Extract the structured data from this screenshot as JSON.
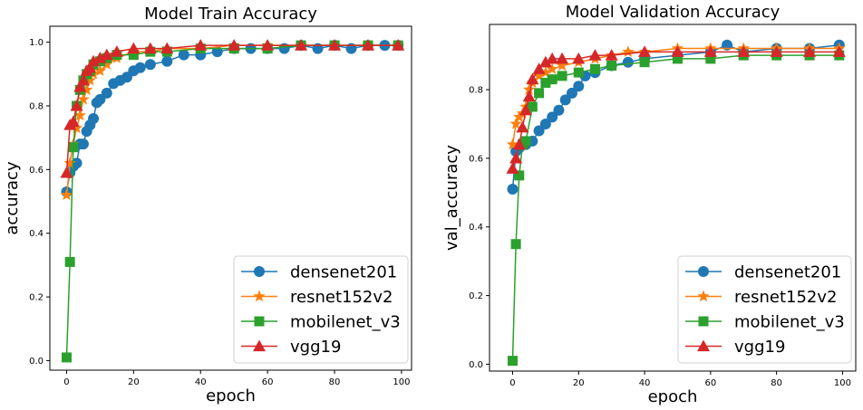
{
  "chart_data": [
    {
      "type": "line",
      "title": "Model Train Accuracy",
      "xlabel": "epoch",
      "ylabel": "accuracy",
      "xlim": [
        -5,
        103
      ],
      "ylim": [
        -0.03,
        1.05
      ],
      "xticks": [
        0,
        20,
        40,
        60,
        80,
        100
      ],
      "yticks": [
        0.0,
        0.2,
        0.4,
        0.6,
        0.8,
        1.0
      ],
      "legend_position": "lower-right",
      "grid": false,
      "series": [
        {
          "name": "densenet201",
          "color": "#1f77b4",
          "marker": "circle",
          "x": [
            0,
            1,
            2,
            3,
            4,
            5,
            6,
            7,
            8,
            9,
            10,
            12,
            14,
            16,
            18,
            20,
            22,
            25,
            30,
            35,
            40,
            45,
            50,
            55,
            60,
            65,
            70,
            75,
            80,
            85,
            90,
            95,
            99
          ],
          "y": [
            0.53,
            0.59,
            0.61,
            0.62,
            0.68,
            0.68,
            0.72,
            0.74,
            0.76,
            0.81,
            0.82,
            0.84,
            0.87,
            0.88,
            0.89,
            0.91,
            0.92,
            0.93,
            0.94,
            0.96,
            0.96,
            0.97,
            0.98,
            0.98,
            0.98,
            0.98,
            0.99,
            0.98,
            0.99,
            0.98,
            0.99,
            0.99,
            0.99
          ]
        },
        {
          "name": "resnet152v2",
          "color": "#ff7f0e",
          "marker": "star",
          "x": [
            0,
            1,
            2,
            3,
            4,
            5,
            6,
            7,
            8,
            10,
            12,
            15,
            20,
            25,
            30,
            40,
            50,
            60,
            70,
            80,
            90,
            99
          ],
          "y": [
            0.52,
            0.62,
            0.68,
            0.73,
            0.77,
            0.82,
            0.85,
            0.88,
            0.9,
            0.91,
            0.93,
            0.95,
            0.97,
            0.97,
            0.98,
            0.98,
            0.99,
            0.99,
            0.99,
            0.99,
            0.99,
            0.99
          ]
        },
        {
          "name": "mobilenet_v3",
          "color": "#2ca02c",
          "marker": "square",
          "x": [
            0,
            1,
            2,
            3,
            4,
            5,
            6,
            7,
            8,
            10,
            12,
            15,
            20,
            25,
            30,
            40,
            50,
            60,
            70,
            80,
            90,
            99
          ],
          "y": [
            0.01,
            0.31,
            0.67,
            0.8,
            0.85,
            0.88,
            0.9,
            0.91,
            0.93,
            0.94,
            0.95,
            0.96,
            0.96,
            0.97,
            0.97,
            0.98,
            0.98,
            0.98,
            0.99,
            0.99,
            0.99,
            0.99
          ]
        },
        {
          "name": "vgg19",
          "color": "#d62728",
          "marker": "triangle",
          "x": [
            0,
            1,
            2,
            3,
            4,
            5,
            6,
            7,
            8,
            10,
            12,
            15,
            20,
            25,
            30,
            40,
            50,
            60,
            70,
            80,
            90,
            99
          ],
          "y": [
            0.59,
            0.74,
            0.75,
            0.8,
            0.86,
            0.88,
            0.91,
            0.92,
            0.94,
            0.95,
            0.96,
            0.97,
            0.98,
            0.98,
            0.98,
            0.99,
            0.99,
            0.99,
            0.99,
            0.99,
            0.99,
            0.99
          ]
        }
      ]
    },
    {
      "type": "line",
      "title": "Model Validation Accuracy",
      "xlabel": "epoch",
      "ylabel": "val_accuracy",
      "xlim": [
        -7,
        104
      ],
      "ylim": [
        -0.02,
        0.99
      ],
      "xticks": [
        0,
        20,
        40,
        60,
        80,
        100
      ],
      "yticks": [
        0.0,
        0.2,
        0.4,
        0.6,
        0.8
      ],
      "legend_position": "lower-right",
      "grid": false,
      "series": [
        {
          "name": "densenet201",
          "color": "#1f77b4",
          "marker": "circle",
          "x": [
            0,
            1,
            2,
            4,
            6,
            8,
            10,
            12,
            14,
            16,
            18,
            20,
            22,
            25,
            30,
            35,
            40,
            50,
            60,
            65,
            70,
            80,
            90,
            99
          ],
          "y": [
            0.51,
            0.62,
            0.63,
            0.64,
            0.65,
            0.68,
            0.7,
            0.72,
            0.74,
            0.77,
            0.79,
            0.81,
            0.84,
            0.85,
            0.87,
            0.88,
            0.89,
            0.9,
            0.91,
            0.93,
            0.91,
            0.92,
            0.92,
            0.93
          ]
        },
        {
          "name": "resnet152v2",
          "color": "#ff7f0e",
          "marker": "star",
          "x": [
            0,
            1,
            2,
            3,
            4,
            5,
            6,
            8,
            10,
            12,
            15,
            20,
            25,
            30,
            35,
            40,
            50,
            60,
            70,
            80,
            90,
            99
          ],
          "y": [
            0.64,
            0.7,
            0.72,
            0.73,
            0.75,
            0.8,
            0.82,
            0.84,
            0.85,
            0.86,
            0.87,
            0.88,
            0.89,
            0.9,
            0.91,
            0.91,
            0.92,
            0.92,
            0.92,
            0.92,
            0.92,
            0.92
          ]
        },
        {
          "name": "mobilenet_v3",
          "color": "#2ca02c",
          "marker": "square",
          "x": [
            0,
            1,
            2,
            3,
            4,
            6,
            8,
            10,
            12,
            15,
            20,
            25,
            30,
            40,
            50,
            60,
            70,
            80,
            90,
            99
          ],
          "y": [
            0.01,
            0.35,
            0.55,
            0.64,
            0.65,
            0.75,
            0.79,
            0.82,
            0.83,
            0.84,
            0.85,
            0.86,
            0.87,
            0.88,
            0.89,
            0.89,
            0.9,
            0.9,
            0.9,
            0.9
          ]
        },
        {
          "name": "vgg19",
          "color": "#d62728",
          "marker": "triangle",
          "x": [
            0,
            1,
            2,
            3,
            4,
            5,
            6,
            8,
            10,
            12,
            15,
            20,
            25,
            30,
            40,
            50,
            60,
            70,
            80,
            90,
            99
          ],
          "y": [
            0.57,
            0.6,
            0.64,
            0.69,
            0.74,
            0.78,
            0.83,
            0.86,
            0.88,
            0.89,
            0.89,
            0.89,
            0.9,
            0.9,
            0.91,
            0.91,
            0.91,
            0.91,
            0.91,
            0.91,
            0.91
          ]
        }
      ]
    }
  ]
}
